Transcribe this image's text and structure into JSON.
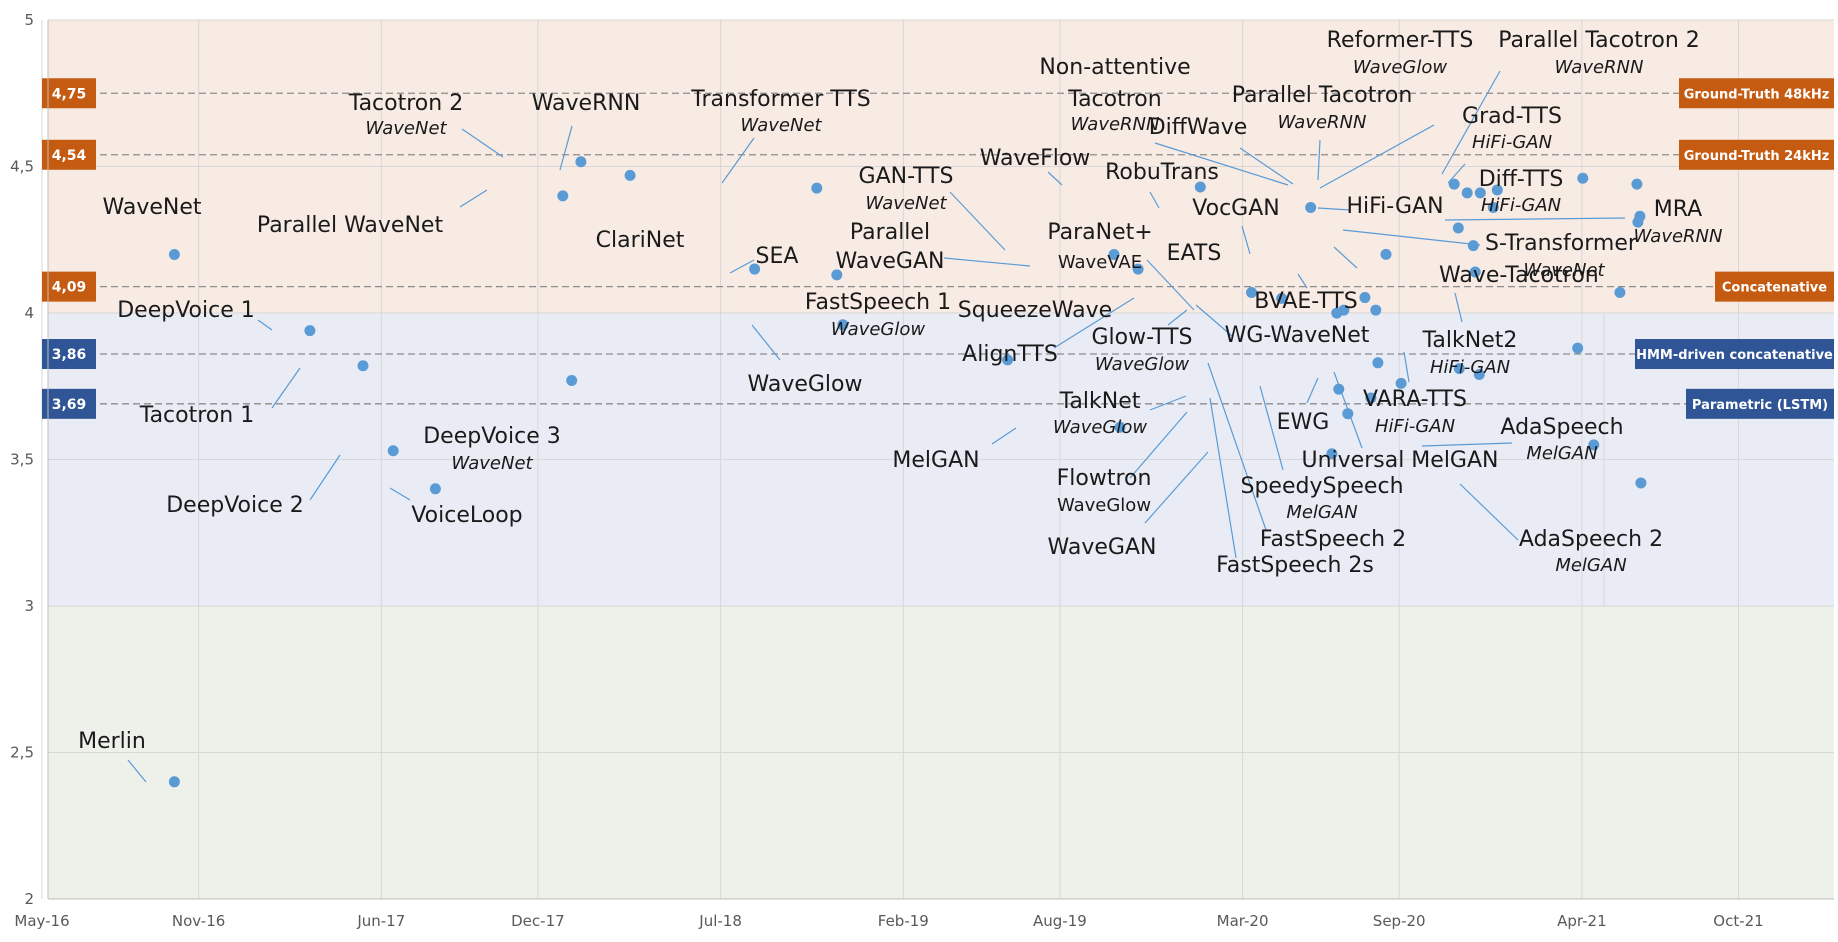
{
  "chart_data": {
    "type": "scatter",
    "title": "",
    "xlabel": "",
    "ylabel": "",
    "x_ticks": [
      "May-16",
      "Nov-16",
      "Jun-17",
      "Dec-17",
      "Jul-18",
      "Feb-19",
      "Aug-19",
      "Mar-20",
      "Sep-20",
      "Apr-21",
      "Oct-21"
    ],
    "y_ticks": [
      "2",
      "2,5",
      "3",
      "3,5",
      "4",
      "4,5",
      "5"
    ],
    "ylim": [
      2,
      5
    ],
    "grid": true,
    "bands": [
      {
        "from": 4,
        "to": 5,
        "color": "#f7ebe4"
      },
      {
        "from": 3,
        "to": 4,
        "color": "#e9ecf5"
      },
      {
        "from": 2,
        "to": 3,
        "color": "#eef0ea"
      }
    ],
    "reference_lines": [
      {
        "value": 4.75,
        "value_label": "4,75",
        "label": "Ground-Truth 48kHz",
        "color": "#c55a11"
      },
      {
        "value": 4.54,
        "value_label": "4,54",
        "label": "Ground-Truth 24kHz",
        "color": "#c55a11"
      },
      {
        "value": 4.09,
        "value_label": "4,09",
        "label": "Concatenative",
        "color": "#c55a11"
      },
      {
        "value": 3.86,
        "value_label": "3,86",
        "label": "HMM-driven concatenative",
        "color": "#2f5597"
      },
      {
        "value": 3.69,
        "value_label": "3,69",
        "label": "Parametric (LSTM)",
        "color": "#2f5597"
      }
    ],
    "point_color": "#5b9bd5",
    "points": [
      {
        "name": "WaveNet",
        "sub": "",
        "x": "Sep-16",
        "y": 4.21
      },
      {
        "name": "Merlin",
        "sub": "",
        "x": "Sep-16",
        "y": 2.4
      },
      {
        "name": "DeepVoice 1",
        "sub": "",
        "x": "Feb-17",
        "y": 3.94
      },
      {
        "name": "Tacotron 1",
        "sub": "",
        "x": "Mar-17",
        "y": 3.82
      },
      {
        "name": "DeepVoice 2",
        "sub": "",
        "x": "May-17",
        "y": 3.53
      },
      {
        "name": "VoiceLoop",
        "sub": "",
        "x": "Jul-17",
        "y": 3.4
      },
      {
        "name": "DeepVoice 3",
        "sub": "WaveNet",
        "x": "Oct-17",
        "y": 3.78
      },
      {
        "name": "Parallel WaveNet",
        "sub": "",
        "x": "Nov-17",
        "y": 4.41
      },
      {
        "name": "Tacotron 2",
        "sub": "WaveNet",
        "x": "Dec-17",
        "y": 4.53
      },
      {
        "name": "WaveRNN",
        "sub": "",
        "x": "Feb-18",
        "y": 4.48
      },
      {
        "name": "ClariNet",
        "sub": "",
        "x": "Jul-18",
        "y": 4.15
      },
      {
        "name": "Transformer TTS",
        "sub": "WaveNet",
        "x": "Sep-18",
        "y": 4.44
      },
      {
        "name": "SEA",
        "sub": "",
        "x": "Sep-18",
        "y": 4.13
      },
      {
        "name": "WaveGlow",
        "sub": "",
        "x": "Oct-18",
        "y": 3.96
      },
      {
        "name": "FastSpeech 1",
        "sub": "WaveGlow",
        "x": "May-19",
        "y": 3.84
      },
      {
        "name": "GAN-TTS",
        "sub": "WaveNet",
        "x": "Sep-19",
        "y": 4.21
      },
      {
        "name": "MelGAN",
        "sub": "",
        "x": "Sep-19",
        "y": 3.61
      },
      {
        "name": "Parallel WaveGAN",
        "sub": "",
        "x": "Oct-19",
        "y": 4.16
      },
      {
        "name": "WaveFlow",
        "sub": "",
        "x": "Dec-19",
        "y": 4.43
      },
      {
        "name": "SqueezeWave",
        "sub": "",
        "x": "Feb-20",
        "y": 4.07
      },
      {
        "name": "AlignTTS",
        "sub": "",
        "x": "Mar-20",
        "y": 4.05
      },
      {
        "name": "RobuTrans",
        "sub": "",
        "x": "Apr-20",
        "y": 4.36
      },
      {
        "name": "ParaNet+",
        "sub": "WaveVAE",
        "x": "May-20",
        "y": 4.01
      },
      {
        "name": "Glow-TTS",
        "sub": "WaveGlow",
        "x": "May-20",
        "y": 4.01
      },
      {
        "name": "TalkNet",
        "sub": "WaveGlow",
        "x": "May-20",
        "y": 3.74
      },
      {
        "name": "Flowtron",
        "sub": "WaveGlow",
        "x": "May-20",
        "y": 3.67
      },
      {
        "name": "EATS",
        "sub": "",
        "x": "Jun-20",
        "y": 4.08
      },
      {
        "name": "WaveGAN",
        "sub": "",
        "x": "Jun-20",
        "y": 3.53
      },
      {
        "name": "FastSpeech 2",
        "sub": "",
        "x": "Jun-20",
        "y": 3.83
      },
      {
        "name": "FastSpeech 2s",
        "sub": "",
        "x": "Jun-20",
        "y": 3.71
      },
      {
        "name": "WG-WaveNet",
        "sub": "",
        "x": "May-20",
        "y": 4.01
      },
      {
        "name": "VocGAN",
        "sub": "",
        "x": "Jul-20",
        "y": 4.2
      },
      {
        "name": "SpeedySpeech",
        "sub": "MelGAN",
        "x": "Aug-20",
        "y": 3.76
      },
      {
        "name": "Non-attentive Tacotron",
        "sub": "WaveRNN",
        "x": "Sep-20",
        "y": 4.44
      },
      {
        "name": "DiffWave",
        "sub": "",
        "x": "Sep-20",
        "y": 4.41
      },
      {
        "name": "BVAE-TTS",
        "sub": "",
        "x": "Sep-20",
        "y": 4.14
      },
      {
        "name": "EWG",
        "sub": "",
        "x": "Oct-20",
        "y": 3.79
      },
      {
        "name": "Parallel Tacotron",
        "sub": "WaveRNN",
        "x": "Oct-20",
        "y": 4.42
      },
      {
        "name": "Reformer-TTS",
        "sub": "WaveGlow",
        "x": "Oct-20",
        "y": 4.41
      },
      {
        "name": "HiFi-GAN",
        "sub": "",
        "x": "Oct-20",
        "y": 4.36
      },
      {
        "name": "Wave-Tacotron",
        "sub": "WaveNet",
        "x": "Oct-20",
        "y": 4.23
      },
      {
        "name": "S-Transformer",
        "sub": "",
        "x": "Oct-20",
        "y": 4.29
      },
      {
        "name": "Universal MelGAN",
        "sub": "",
        "x": "Oct-20",
        "y": 3.81
      },
      {
        "name": "VARA-TTS",
        "sub": "HiFi-GAN",
        "x": "Feb-21",
        "y": 3.88
      },
      {
        "name": "TalkNet2",
        "sub": "HiFi-GAN",
        "x": "Apr-21",
        "y": 4.07
      },
      {
        "name": "AdaSpeech",
        "sub": "MelGAN",
        "x": "Mar-21",
        "y": 3.55
      },
      {
        "name": "AdaSpeech 2",
        "sub": "MelGAN",
        "x": "Apr-21",
        "y": 3.42
      },
      {
        "name": "Parallel Tacotron 2",
        "sub": "WaveRNN",
        "x": "Mar-21",
        "y": 4.46
      },
      {
        "name": "Grad-TTS",
        "sub": "HiFi-GAN",
        "x": "Apr-21",
        "y": 4.33
      },
      {
        "name": "Diff-TTS",
        "sub": "HiFi-GAN",
        "x": "Apr-21",
        "y": 4.44
      },
      {
        "name": "MRA",
        "sub": "WaveRNN",
        "x": "Apr-21",
        "y": 4.31
      }
    ]
  }
}
